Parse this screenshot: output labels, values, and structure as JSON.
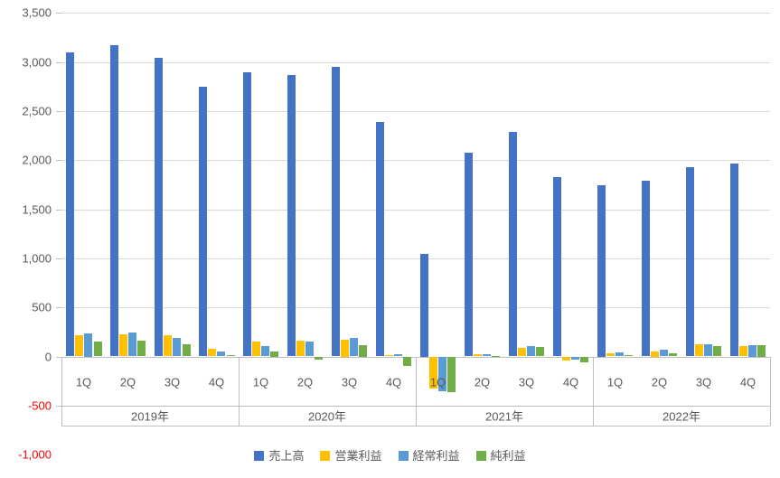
{
  "chart_data": {
    "type": "bar",
    "title": "",
    "categories": [
      "1Q",
      "2Q",
      "3Q",
      "4Q",
      "1Q",
      "2Q",
      "3Q",
      "4Q",
      "1Q",
      "2Q",
      "3Q",
      "4Q",
      "1Q",
      "2Q",
      "3Q",
      "4Q"
    ],
    "year_groups": [
      {
        "label": "2019年",
        "span": 4
      },
      {
        "label": "2020年",
        "span": 4
      },
      {
        "label": "2021年",
        "span": 4
      },
      {
        "label": "2022年",
        "span": 4
      }
    ],
    "series": [
      {
        "name": "売上高",
        "key": "revenue",
        "color": "#4472c4",
        "values": [
          3100,
          3170,
          3040,
          2750,
          2900,
          2870,
          2950,
          2390,
          1050,
          2080,
          2290,
          1830,
          1750,
          1790,
          1925,
          1970
        ]
      },
      {
        "name": "営業利益",
        "key": "operating-profit",
        "color": "#ffc000",
        "values": [
          215,
          225,
          215,
          75,
          150,
          160,
          170,
          10,
          -330,
          20,
          90,
          -40,
          30,
          55,
          125,
          105
        ]
      },
      {
        "name": "経常利益",
        "key": "ordinary-profit",
        "color": "#5b9bd5",
        "values": [
          235,
          240,
          185,
          50,
          110,
          155,
          185,
          25,
          -350,
          20,
          105,
          -35,
          45,
          70,
          125,
          120
        ]
      },
      {
        "name": "純利益",
        "key": "net-profit",
        "color": "#70ad47",
        "values": [
          150,
          160,
          125,
          15,
          55,
          -30,
          115,
          -95,
          -360,
          5,
          100,
          -60,
          15,
          35,
          105,
          120
        ]
      }
    ],
    "xlabel": "",
    "ylabel": "",
    "ylim": [
      -1000,
      3500
    ],
    "y_tick_step": 500,
    "y_tick_labels": [
      "3,500",
      "3,000",
      "2,500",
      "2,000",
      "1,500",
      "1,000",
      "500",
      "0",
      "-500",
      "-1,000"
    ],
    "negative_tick_color": "#ff0000",
    "positive_tick_color": "#595959",
    "grid": true,
    "gridline_color": "#d9d9d9",
    "legend_position": "bottom",
    "legend_labels": [
      "売上高",
      "営業利益",
      "経常利益",
      "純利益"
    ]
  }
}
